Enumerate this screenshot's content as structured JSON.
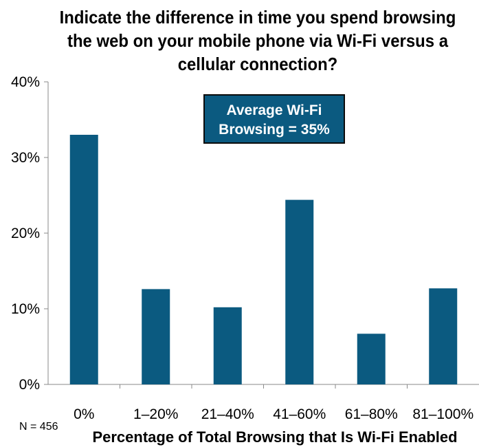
{
  "chart_data": {
    "type": "bar",
    "title_lines": [
      "Indicate the difference in time you spend browsing",
      "the web on your mobile phone via Wi-Fi versus a",
      "cellular connection?"
    ],
    "categories": [
      "0%",
      "1–20%",
      "21–40%",
      "41–60%",
      "61–80%",
      "81–100%"
    ],
    "values": [
      33,
      12.6,
      10.2,
      24.4,
      6.7,
      12.7
    ],
    "xlabel": "Percentage of Total Browsing that Is Wi-Fi Enabled",
    "ylabel": "",
    "ylim": [
      0,
      40
    ],
    "yticks": [
      "0%",
      "10%",
      "20%",
      "30%",
      "40%"
    ],
    "grid": false,
    "bar_color": "#0b5a80",
    "annotation_lines": [
      "Average Wi-Fi",
      "Browsing = 35%"
    ],
    "footnote": "N = 456"
  }
}
